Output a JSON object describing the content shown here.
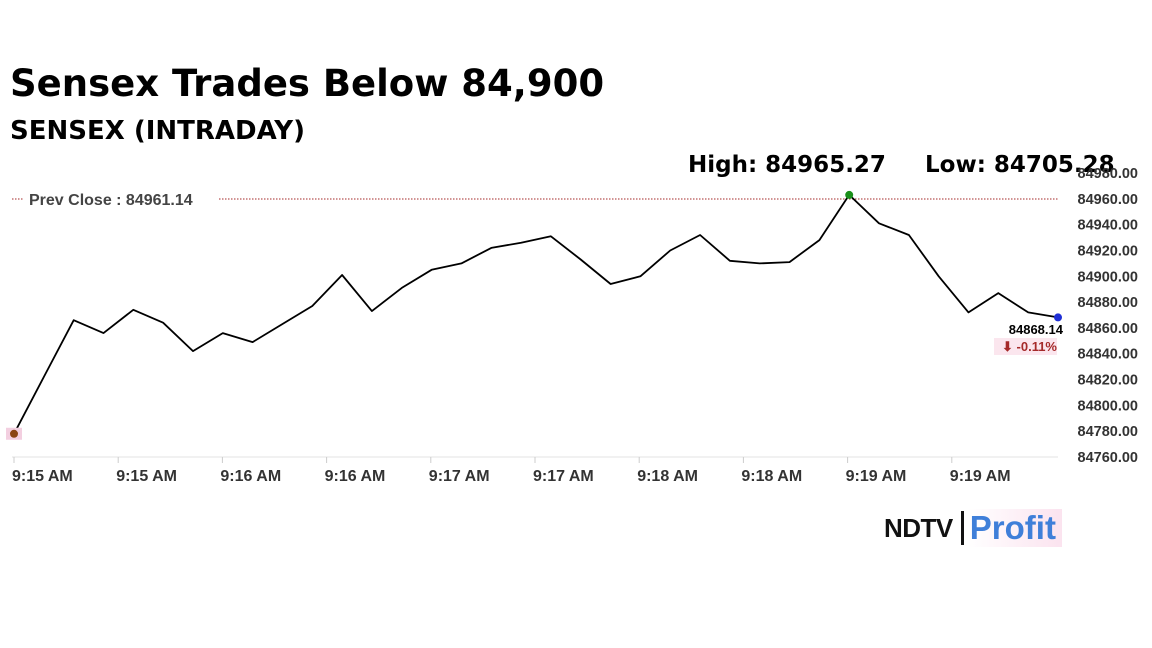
{
  "headline": "Sensex Trades Below 84,900",
  "subtitle": "SENSEX (INTRADAY)",
  "high_label": "High: 84965.27",
  "low_label": "Low: 84705.28",
  "prev_close_label": "Prev Close : 84961.14",
  "last_value_label": "84868.14",
  "change_label": "⬇ -0.11%",
  "logo": {
    "brand": "NDTV",
    "product": "Profit"
  },
  "colors": {
    "line": "#000000",
    "prev_close": "#a52a2a",
    "high_marker": "#1a8f1a",
    "start_marker": "#8b4513",
    "last_marker": "#1f2fd6",
    "change": "#a52a2a"
  },
  "chart_data": {
    "type": "line",
    "x_tick_labels": [
      "9:15 AM",
      "9:15 AM",
      "9:16 AM",
      "9:16 AM",
      "9:17 AM",
      "9:17 AM",
      "9:18 AM",
      "9:18 AM",
      "9:19 AM",
      "9:19 AM"
    ],
    "y_ticks": [
      "84760.00",
      "84780.00",
      "84800.00",
      "84820.00",
      "84840.00",
      "84860.00",
      "84880.00",
      "84900.00",
      "84920.00",
      "84940.00",
      "84960.00",
      "84980.00"
    ],
    "ylim": [
      84760,
      84980
    ],
    "values": [
      84778,
      84822,
      84866,
      84856,
      84874,
      84864,
      84842,
      84856,
      84849,
      84863,
      84877,
      84901,
      84873,
      84891,
      84905,
      84910,
      84922,
      84926,
      84931,
      84913,
      84894,
      84900,
      84920,
      84932,
      84912,
      84910,
      84911,
      84928,
      84963,
      84941,
      84932,
      84900,
      84872,
      84887,
      84872,
      84868.14
    ],
    "prev_close": 84961.14,
    "grid": false,
    "markers": [
      "start",
      "high",
      "last"
    ]
  }
}
